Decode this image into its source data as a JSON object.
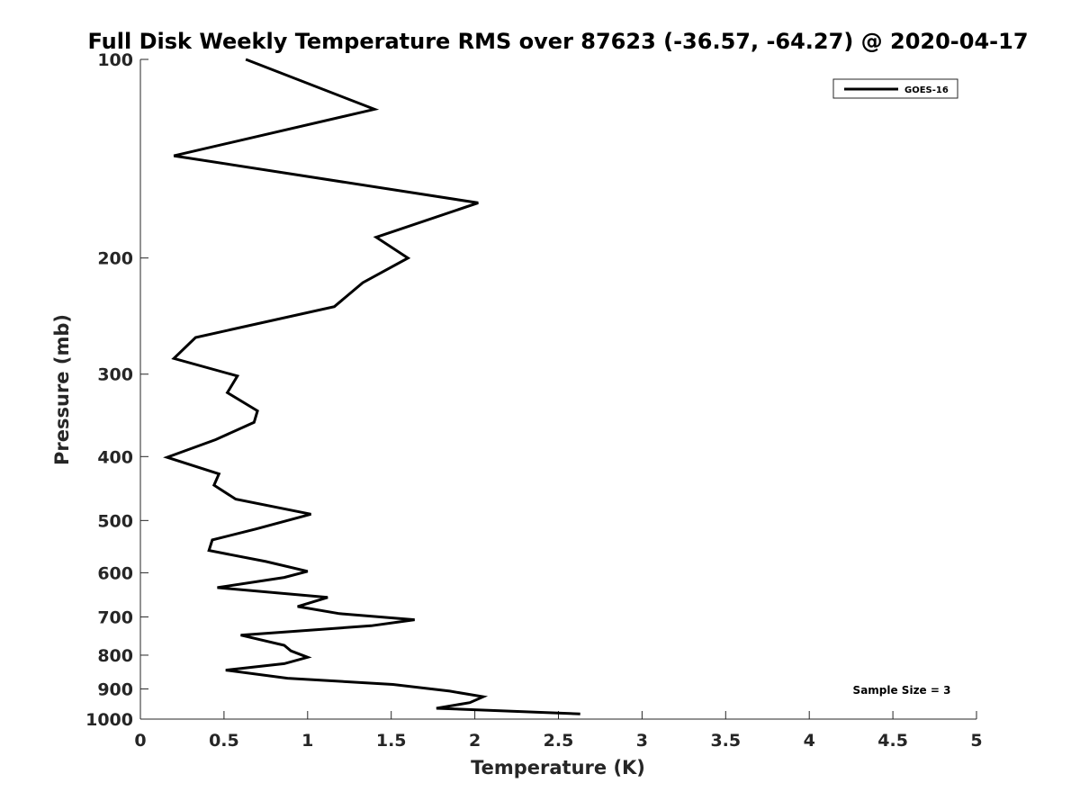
{
  "chart_data": {
    "type": "line",
    "title": "Full Disk Weekly Temperature RMS over 87623 (-36.57, -64.27) @ 2020-04-17",
    "xlabel": "Temperature (K)",
    "ylabel": "Pressure (mb)",
    "xlim": [
      0,
      5
    ],
    "ylim": [
      100,
      1000
    ],
    "yscale": "log",
    "yreversed": true,
    "x_ticks": [
      0,
      0.5,
      1,
      1.5,
      2,
      2.5,
      3,
      3.5,
      4,
      4.5,
      5
    ],
    "x_tick_labels": [
      "0",
      "0.5",
      "1",
      "1.5",
      "2",
      "2.5",
      "3",
      "3.5",
      "4",
      "4.5",
      "5"
    ],
    "y_ticks": [
      100,
      200,
      300,
      400,
      500,
      600,
      700,
      800,
      900,
      1000
    ],
    "y_tick_labels": [
      "100",
      "200",
      "300",
      "400",
      "500",
      "600",
      "700",
      "800",
      "900",
      "1000"
    ],
    "grid": false,
    "legend": {
      "position": "top-right",
      "entries": [
        "GOES-16"
      ]
    },
    "annotation": "Sample Size = 3",
    "series": [
      {
        "name": "GOES-16",
        "color": "#000000",
        "points": [
          [
            0.63,
            100
          ],
          [
            1.4,
            119
          ],
          [
            0.2,
            140
          ],
          [
            2.02,
            165
          ],
          [
            1.41,
            186
          ],
          [
            1.6,
            200
          ],
          [
            1.33,
            218
          ],
          [
            1.16,
            237
          ],
          [
            0.33,
            264
          ],
          [
            0.2,
            284
          ],
          [
            0.58,
            302
          ],
          [
            0.52,
            320
          ],
          [
            0.7,
            341
          ],
          [
            0.68,
            355
          ],
          [
            0.45,
            377
          ],
          [
            0.16,
            401
          ],
          [
            0.47,
            425
          ],
          [
            0.44,
            442
          ],
          [
            0.57,
            464
          ],
          [
            1.02,
            489
          ],
          [
            0.69,
            515
          ],
          [
            0.43,
            535
          ],
          [
            0.41,
            555
          ],
          [
            0.75,
            577
          ],
          [
            1.0,
            597
          ],
          [
            0.86,
            610
          ],
          [
            0.46,
            632
          ],
          [
            1.12,
            654
          ],
          [
            0.94,
            675
          ],
          [
            1.19,
            692
          ],
          [
            1.64,
            707
          ],
          [
            1.38,
            722
          ],
          [
            0.6,
            746
          ],
          [
            0.86,
            773
          ],
          [
            0.9,
            788
          ],
          [
            1.0,
            806
          ],
          [
            0.86,
            824
          ],
          [
            0.51,
            843
          ],
          [
            0.88,
            867
          ],
          [
            1.51,
            886
          ],
          [
            1.85,
            907
          ],
          [
            2.05,
            925
          ],
          [
            1.97,
            944
          ],
          [
            1.77,
            963
          ],
          [
            2.63,
            982
          ]
        ]
      }
    ]
  }
}
